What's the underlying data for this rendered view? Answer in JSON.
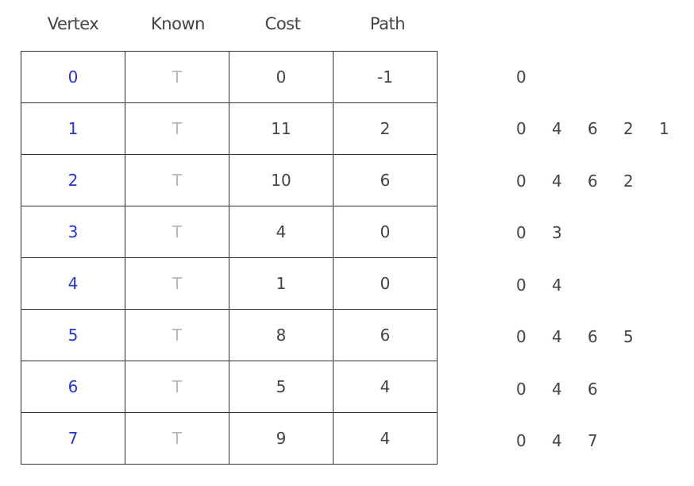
{
  "headers": {
    "vertex": "Vertex",
    "known": "Known",
    "cost": "Cost",
    "path": "Path"
  },
  "rows": [
    {
      "vertex": "0",
      "known": "T",
      "cost": "0",
      "path": "-1",
      "route": [
        "0"
      ]
    },
    {
      "vertex": "1",
      "known": "T",
      "cost": "11",
      "path": "2",
      "route": [
        "0",
        "4",
        "6",
        "2",
        "1"
      ]
    },
    {
      "vertex": "2",
      "known": "T",
      "cost": "10",
      "path": "6",
      "route": [
        "0",
        "4",
        "6",
        "2"
      ]
    },
    {
      "vertex": "3",
      "known": "T",
      "cost": "4",
      "path": "0",
      "route": [
        "0",
        "3"
      ]
    },
    {
      "vertex": "4",
      "known": "T",
      "cost": "1",
      "path": "0",
      "route": [
        "0",
        "4"
      ]
    },
    {
      "vertex": "5",
      "known": "T",
      "cost": "8",
      "path": "6",
      "route": [
        "0",
        "4",
        "6",
        "5"
      ]
    },
    {
      "vertex": "6",
      "known": "T",
      "cost": "5",
      "path": "4",
      "route": [
        "0",
        "4",
        "6"
      ]
    },
    {
      "vertex": "7",
      "known": "T",
      "cost": "9",
      "path": "4",
      "route": [
        "0",
        "4",
        "7"
      ]
    }
  ],
  "colors": {
    "vertex": "#2233ee",
    "known": "#b8b8b8",
    "text": "#444444",
    "border": "#333333"
  }
}
